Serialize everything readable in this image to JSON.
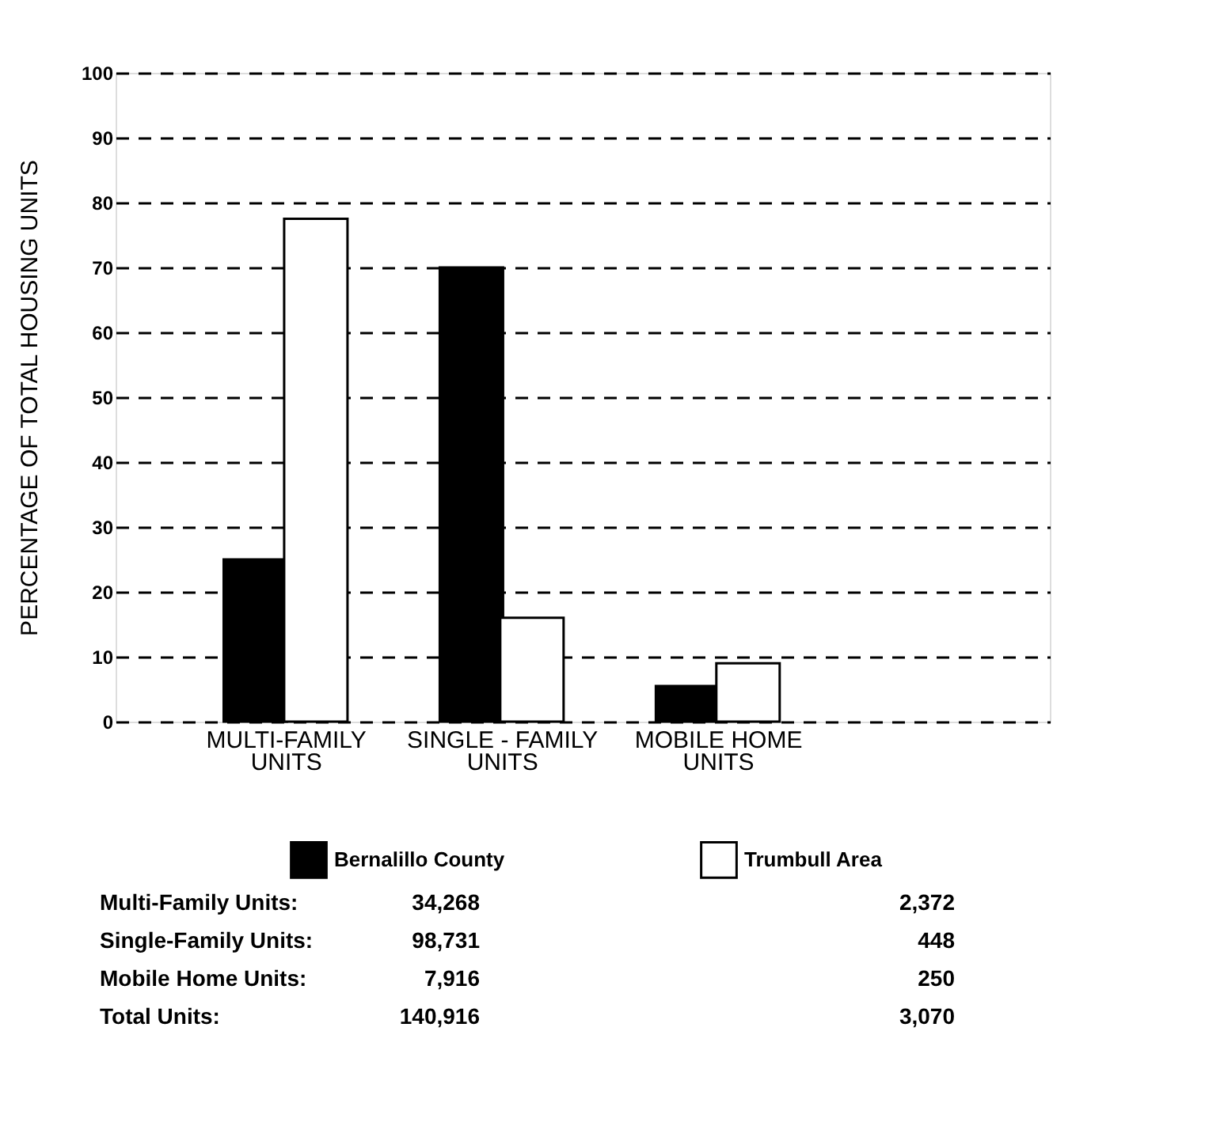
{
  "chart_data": {
    "type": "bar",
    "ylabel": "PERCENTAGE OF TOTAL HOUSING UNITS",
    "categories": [
      "MULTI-FAMILY\nUNITS",
      "SINGLE - FAMILY\nUNITS",
      "MOBILE HOME\nUNITS"
    ],
    "series": [
      {
        "name": "Bernalillo County",
        "color": "#000000",
        "values": [
          25,
          70,
          5.5
        ]
      },
      {
        "name": "Trumbull Area",
        "color": "#ffffff",
        "values": [
          77.5,
          16,
          9
        ]
      }
    ],
    "ylim": [
      0,
      100
    ],
    "yticks": [
      0,
      10,
      20,
      30,
      40,
      50,
      60,
      70,
      80,
      90,
      100
    ],
    "grid": "y",
    "line_style": "dashed",
    "legend": "bottom",
    "annotations": [
      "Multi-Family Units:",
      "34,268",
      "2,372",
      "Single-Family Units:",
      "98,731",
      "448",
      "Mobile Home Units:",
      "7,916",
      "250",
      "Total Units:",
      "140,916",
      "3,070"
    ]
  }
}
